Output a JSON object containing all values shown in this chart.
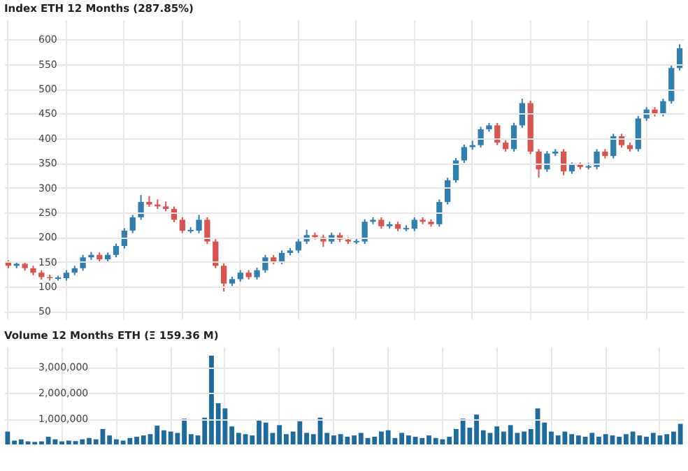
{
  "chart_data": [
    {
      "type": "candlestick",
      "title": "Index ETH 12 Months (287.85%)",
      "categories": [
        null,
        null,
        null,
        null,
        null,
        null,
        null,
        null,
        null,
        null,
        null,
        null,
        null,
        null,
        null,
        null,
        null,
        null,
        null,
        null,
        null,
        null,
        null,
        null,
        null,
        null,
        null,
        null,
        null,
        null,
        null,
        null,
        null,
        null,
        null,
        null,
        null,
        null,
        null,
        null,
        null,
        null,
        null,
        null,
        null,
        null,
        null,
        null,
        null,
        null,
        null,
        null,
        null,
        null,
        null,
        null,
        null,
        null,
        null,
        null,
        null,
        null,
        null,
        null,
        null,
        null,
        null,
        null,
        null,
        null,
        null,
        null,
        null,
        null,
        null,
        null,
        null,
        null,
        null,
        null,
        null,
        null
      ],
      "ohlc": [
        [
          148,
          153,
          137,
          142
        ],
        [
          142,
          151,
          137,
          146
        ],
        [
          146,
          151,
          132,
          137
        ],
        [
          137,
          142,
          123,
          128
        ],
        [
          128,
          133,
          114,
          119
        ],
        [
          119,
          124,
          112,
          117
        ],
        [
          117,
          122,
          112,
          117
        ],
        [
          117,
          133,
          112,
          128
        ],
        [
          128,
          142,
          123,
          137
        ],
        [
          137,
          164,
          132,
          159
        ],
        [
          159,
          170,
          154,
          164
        ],
        [
          164,
          169,
          150,
          155
        ],
        [
          155,
          169,
          150,
          164
        ],
        [
          164,
          187,
          159,
          182
        ],
        [
          182,
          218,
          177,
          213
        ],
        [
          213,
          245,
          208,
          240
        ],
        [
          240,
          285,
          235,
          271
        ],
        [
          271,
          283,
          261,
          266
        ],
        [
          266,
          276,
          257,
          262
        ],
        [
          262,
          272,
          252,
          257
        ],
        [
          257,
          262,
          230,
          235
        ],
        [
          235,
          240,
          208,
          213
        ],
        [
          213,
          220,
          208,
          213
        ],
        [
          213,
          245,
          208,
          235
        ],
        [
          235,
          240,
          186,
          191
        ],
        [
          191,
          196,
          137,
          142
        ],
        [
          142,
          147,
          90,
          106
        ],
        [
          106,
          120,
          101,
          115
        ],
        [
          115,
          133,
          110,
          128
        ],
        [
          128,
          133,
          114,
          119
        ],
        [
          119,
          138,
          114,
          133
        ],
        [
          133,
          164,
          128,
          159
        ],
        [
          159,
          164,
          145,
          150
        ],
        [
          150,
          173,
          145,
          168
        ],
        [
          168,
          178,
          163,
          173
        ],
        [
          173,
          196,
          168,
          191
        ],
        [
          191,
          215,
          186,
          204
        ],
        [
          204,
          209,
          195,
          200
        ],
        [
          200,
          205,
          180,
          191
        ],
        [
          191,
          209,
          186,
          204
        ],
        [
          204,
          209,
          190,
          195
        ],
        [
          195,
          200,
          186,
          191
        ],
        [
          191,
          198,
          186,
          191
        ],
        [
          191,
          236,
          186,
          231
        ],
        [
          231,
          240,
          226,
          235
        ],
        [
          235,
          240,
          217,
          222
        ],
        [
          222,
          231,
          217,
          226
        ],
        [
          226,
          231,
          212,
          217
        ],
        [
          217,
          224,
          212,
          217
        ],
        [
          217,
          240,
          212,
          235
        ],
        [
          235,
          240,
          226,
          231
        ],
        [
          231,
          236,
          221,
          226
        ],
        [
          226,
          276,
          221,
          271
        ],
        [
          271,
          320,
          266,
          315
        ],
        [
          315,
          360,
          310,
          355
        ],
        [
          355,
          387,
          350,
          382
        ],
        [
          382,
          395,
          377,
          386
        ],
        [
          386,
          423,
          381,
          418
        ],
        [
          418,
          431,
          413,
          426
        ],
        [
          426,
          431,
          386,
          391
        ],
        [
          391,
          396,
          373,
          378
        ],
        [
          378,
          431,
          373,
          426
        ],
        [
          426,
          480,
          421,
          471
        ],
        [
          471,
          476,
          368,
          373
        ],
        [
          373,
          378,
          320,
          337
        ],
        [
          337,
          374,
          332,
          369
        ],
        [
          369,
          378,
          364,
          373
        ],
        [
          373,
          378,
          325,
          333
        ],
        [
          333,
          351,
          328,
          346
        ],
        [
          346,
          351,
          337,
          342
        ],
        [
          342,
          350,
          337,
          342
        ],
        [
          342,
          378,
          337,
          373
        ],
        [
          373,
          378,
          359,
          364
        ],
        [
          364,
          409,
          359,
          404
        ],
        [
          404,
          409,
          381,
          386
        ],
        [
          386,
          391,
          373,
          378
        ],
        [
          378,
          445,
          373,
          440
        ],
        [
          440,
          463,
          435,
          458
        ],
        [
          458,
          463,
          444,
          449
        ],
        [
          449,
          480,
          444,
          475
        ],
        [
          475,
          547,
          470,
          542
        ],
        [
          542,
          590,
          537,
          582
        ]
      ],
      "ylim": [
        35,
        640
      ],
      "yticks": [
        50,
        100,
        150,
        200,
        250,
        300,
        350,
        400,
        450,
        500,
        550,
        600
      ],
      "grid": true,
      "tick_labels": "y"
    },
    {
      "type": "bar",
      "title": "Volume 12 Months ETH (Ξ 159.36 M)",
      "color": "#1d6a9e",
      "categories": [
        null,
        null,
        null,
        null,
        null,
        null,
        null,
        null,
        null,
        null,
        null,
        null,
        null,
        null,
        null,
        null,
        null,
        null,
        null,
        null,
        null,
        null,
        null,
        null,
        null,
        null,
        null,
        null,
        null,
        null,
        null,
        null,
        null,
        null,
        null,
        null,
        null,
        null,
        null,
        null,
        null,
        null,
        null,
        null,
        null,
        null,
        null,
        null,
        null,
        null,
        null,
        null,
        null,
        null,
        null,
        null,
        null,
        null,
        null,
        null,
        null,
        null,
        null,
        null,
        null,
        null,
        null,
        null,
        null,
        null,
        null,
        null,
        null,
        null,
        null,
        null,
        null,
        null,
        null,
        null,
        null,
        null,
        null,
        null,
        null,
        null,
        null,
        null,
        null,
        null,
        null,
        null,
        null,
        null,
        null,
        null,
        null,
        null,
        null,
        null
      ],
      "values": [
        500000,
        150000,
        200000,
        120000,
        100000,
        120000,
        300000,
        200000,
        120000,
        150000,
        130000,
        200000,
        250000,
        200000,
        600000,
        350000,
        200000,
        150000,
        250000,
        300000,
        350000,
        400000,
        730000,
        550000,
        500000,
        450000,
        1000000,
        400000,
        350000,
        1040000,
        3450000,
        1600000,
        1400000,
        700000,
        450000,
        400000,
        350000,
        950000,
        850000,
        450000,
        750000,
        400000,
        500000,
        900000,
        450000,
        400000,
        1040000,
        450000,
        350000,
        400000,
        300000,
        350000,
        450000,
        250000,
        300000,
        500000,
        550000,
        250000,
        450000,
        350000,
        300000,
        250000,
        350000,
        250000,
        200000,
        300000,
        600000,
        1000000,
        650000,
        1160000,
        550000,
        450000,
        700000,
        500000,
        750000,
        450000,
        500000,
        600000,
        1400000,
        850000,
        500000,
        350000,
        500000,
        400000,
        350000,
        300000,
        450000,
        300000,
        400000,
        350000,
        300000,
        400000,
        500000,
        350000,
        300000,
        450000,
        350000,
        400000,
        500000,
        800000
      ],
      "ylim": [
        0,
        3800000
      ],
      "yticks": [
        {
          "value": 1000000,
          "label": "1,000,000"
        },
        {
          "value": 2000000,
          "label": "2,000,000"
        },
        {
          "value": 3000000,
          "label": "3,000,000"
        }
      ],
      "grid": true,
      "tick_labels": "y"
    }
  ]
}
